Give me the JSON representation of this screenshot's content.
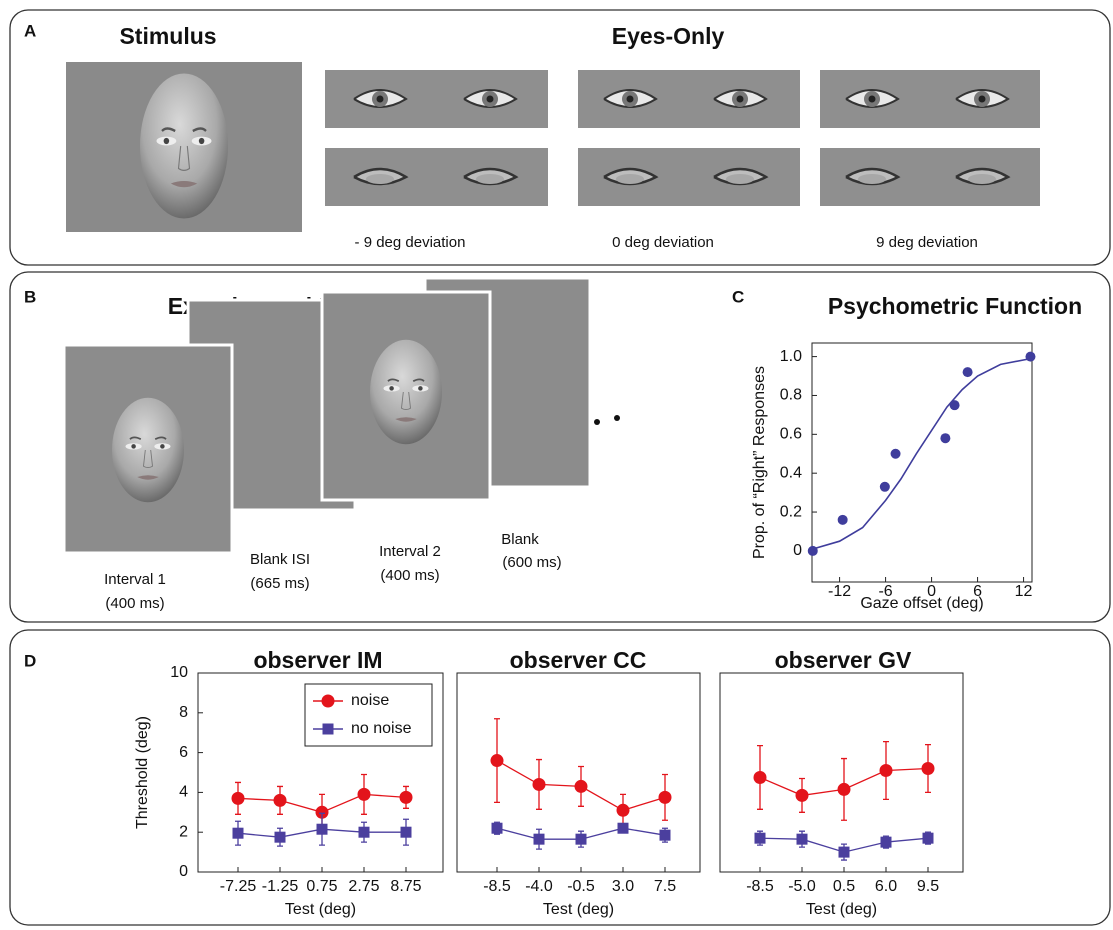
{
  "panels": {
    "A": {
      "label": "A",
      "titles": [
        "Stimulus",
        "Eyes-Only"
      ],
      "captions": [
        "- 9 deg deviation",
        "0 deg deviation",
        "9 deg deviation"
      ]
    },
    "B": {
      "label": "B",
      "title": "Experimental Procedure",
      "cards": [
        {
          "name": "Interval 1",
          "duration": "(400 ms)"
        },
        {
          "name": "Blank ISI",
          "duration": "(665 ms)"
        },
        {
          "name": "Interval 2",
          "duration": "(400 ms)"
        },
        {
          "name": "Blank",
          "duration": "(600 ms)"
        }
      ]
    },
    "C": {
      "label": "C"
    },
    "D": {
      "label": "D"
    }
  },
  "chart_data": [
    {
      "type": "scatter",
      "title": "Psychometric Function",
      "xlabel": "Gaze offset (deg)",
      "ylabel": "Prop. of “Right” Responses",
      "xlim": [
        -15.6,
        13.1
      ],
      "ylim": [
        -0.16,
        1.07
      ],
      "xticks": [
        -12,
        -6,
        0,
        6,
        12
      ],
      "yticks": [
        0,
        0.2,
        0.4,
        0.6,
        0.8,
        {
          "value": 1,
          "label": "1.0"
        }
      ],
      "points": {
        "color": "#3f3d9c",
        "x": [
          -15.5,
          -11.6,
          -6.1,
          -4.7,
          1.8,
          3.0,
          4.7,
          12.9
        ],
        "values": [
          0,
          0.16,
          0.33,
          0.5,
          0.58,
          0.75,
          0.92,
          1.0
        ]
      },
      "fit": {
        "color": "#3f3d9c",
        "x": [
          -15.5,
          -12,
          -9,
          -6,
          -4,
          -2,
          0,
          2,
          4,
          6,
          9,
          13
        ],
        "values": [
          0.01,
          0.05,
          0.12,
          0.26,
          0.37,
          0.5,
          0.62,
          0.74,
          0.83,
          0.9,
          0.96,
          0.99
        ]
      }
    },
    {
      "type": "line",
      "title": "observer IM",
      "xlabel": "Test (deg)",
      "ylabel": "Threshold (deg)",
      "ylim": [
        0,
        10
      ],
      "yticks": [
        0,
        2,
        4,
        6,
        8,
        10
      ],
      "categories": [
        "-7.25",
        "-1.25",
        "0.75",
        "2.75",
        "8.75"
      ],
      "legend": "upper right",
      "series": [
        {
          "name": "noise",
          "color": "#e3141b",
          "marker": "circle",
          "values": [
            3.7,
            3.6,
            3.0,
            3.9,
            3.75
          ],
          "errors": [
            0.8,
            0.7,
            0.9,
            1.0,
            0.55
          ]
        },
        {
          "name": "no noise",
          "color": "#4b3f9e",
          "marker": "square",
          "values": [
            1.95,
            1.75,
            2.15,
            2.0,
            2.0
          ],
          "errors": [
            0.6,
            0.45,
            0.8,
            0.5,
            0.65
          ]
        }
      ]
    },
    {
      "type": "line",
      "title": "observer CC",
      "xlabel": "Test (deg)",
      "ylim": [
        0,
        10
      ],
      "categories": [
        "-8.5",
        "-4.0",
        "-0.5",
        "3.0",
        "7.5"
      ],
      "series": [
        {
          "color": "#e3141b",
          "marker": "circle",
          "values": [
            5.6,
            4.4,
            4.3,
            3.1,
            3.75
          ],
          "errors": [
            2.1,
            1.25,
            1.0,
            0.8,
            1.15
          ]
        },
        {
          "color": "#4b3f9e",
          "marker": "square",
          "values": [
            2.2,
            1.65,
            1.65,
            2.2,
            1.85
          ],
          "errors": [
            0.3,
            0.5,
            0.4,
            0.2,
            0.35
          ]
        }
      ]
    },
    {
      "type": "line",
      "title": "observer GV",
      "xlabel": "Test (deg)",
      "ylim": [
        0,
        10
      ],
      "categories": [
        "-8.5",
        "-5.0",
        "0.5",
        "6.0",
        "9.5"
      ],
      "series": [
        {
          "color": "#e3141b",
          "marker": "circle",
          "values": [
            4.75,
            3.85,
            4.15,
            5.1,
            5.2
          ],
          "errors": [
            1.6,
            0.85,
            1.55,
            1.45,
            1.2
          ]
        },
        {
          "color": "#4b3f9e",
          "marker": "square",
          "values": [
            1.7,
            1.65,
            1.0,
            1.5,
            1.7
          ],
          "errors": [
            0.35,
            0.4,
            0.4,
            0.3,
            0.3
          ]
        }
      ]
    }
  ]
}
